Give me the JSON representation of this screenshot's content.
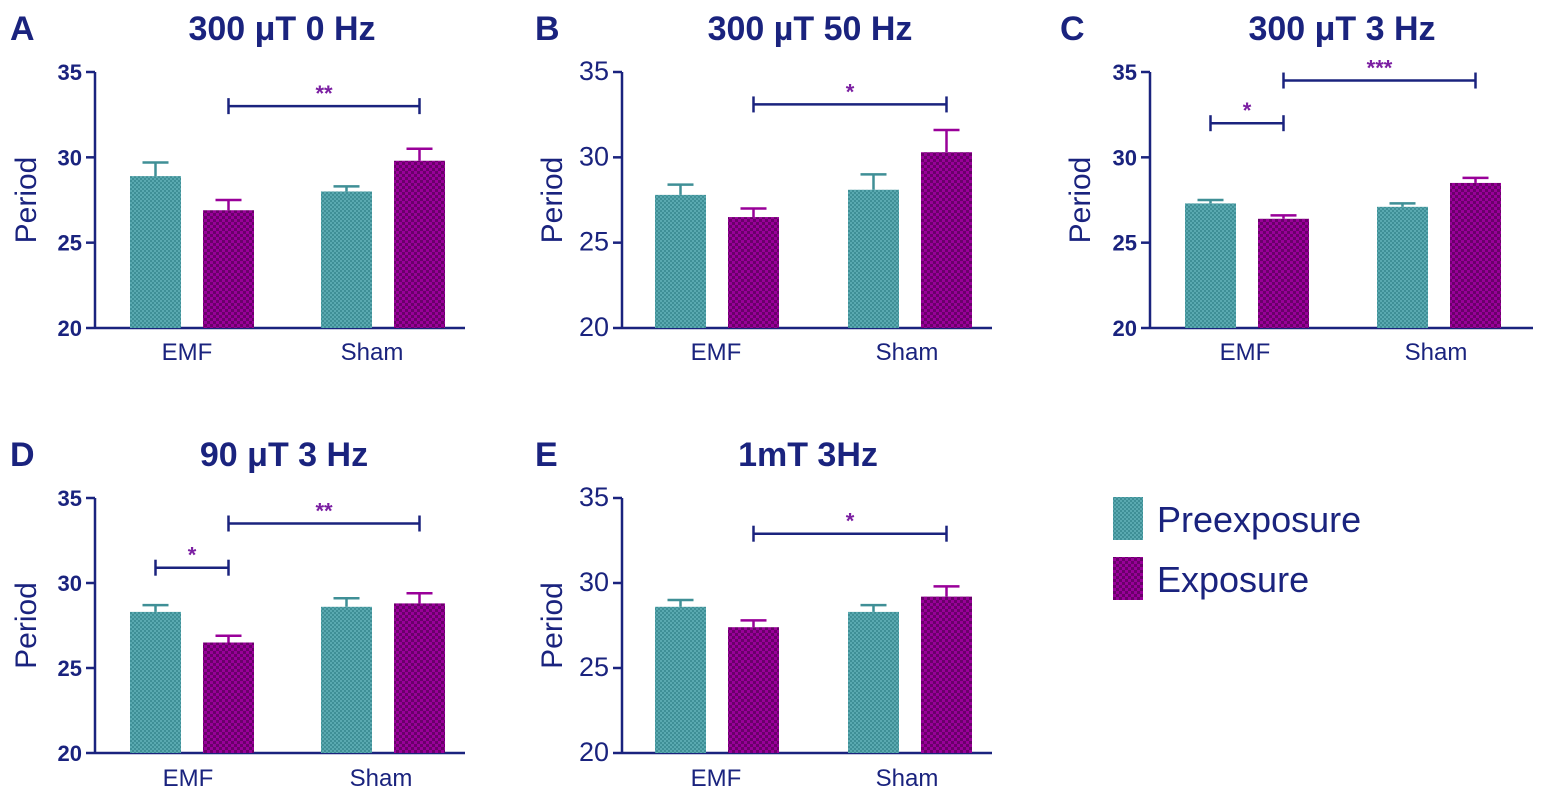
{
  "colors": {
    "axis": "#1a237e",
    "preexposure": "#3f8f96",
    "exposure": "#990099",
    "significance": "#7b1fa2"
  },
  "legend": {
    "items": [
      {
        "label": "Preexposure",
        "color": "#3f8f96"
      },
      {
        "label": "Exposure",
        "color": "#990099"
      }
    ]
  },
  "chart_data": [
    {
      "type": "bar",
      "letter": "A",
      "title": "300 μT 0 Hz",
      "ylabel": "Period",
      "ylim": [
        20,
        35
      ],
      "yticks": [
        "20",
        "25",
        "30",
        "35"
      ],
      "categories": [
        "EMF",
        "Sham"
      ],
      "series": [
        {
          "name": "Preexposure",
          "values": [
            28.9,
            28.0
          ],
          "errors": [
            0.8,
            0.3
          ]
        },
        {
          "name": "Exposure",
          "values": [
            26.9,
            29.8
          ],
          "errors": [
            0.6,
            0.7
          ]
        }
      ],
      "significance": [
        {
          "from": "EMF.Exposure",
          "to": "Sham.Exposure",
          "y": 33.0,
          "label": "**"
        }
      ]
    },
    {
      "type": "bar",
      "letter": "B",
      "title": "300 µT 50 Hz",
      "ylabel": "Period",
      "ylim": [
        20,
        35
      ],
      "yticks": [
        "20",
        "25",
        "30",
        "35"
      ],
      "categories": [
        "EMF",
        "Sham"
      ],
      "series": [
        {
          "name": "Preexposure",
          "values": [
            27.8,
            28.1
          ],
          "errors": [
            0.6,
            0.9
          ]
        },
        {
          "name": "Exposure",
          "values": [
            26.5,
            30.3
          ],
          "errors": [
            0.5,
            1.3
          ]
        }
      ],
      "significance": [
        {
          "from": "EMF.Exposure",
          "to": "Sham.Exposure",
          "y": 33.1,
          "label": "*"
        }
      ]
    },
    {
      "type": "bar",
      "letter": "C",
      "title": "300 μT 3 Hz",
      "ylabel": "Period",
      "ylim": [
        20,
        35
      ],
      "yticks": [
        "20",
        "25",
        "30",
        "35"
      ],
      "categories": [
        "EMF",
        "Sham"
      ],
      "series": [
        {
          "name": "Preexposure",
          "values": [
            27.3,
            27.1
          ],
          "errors": [
            0.2,
            0.2
          ]
        },
        {
          "name": "Exposure",
          "values": [
            26.4,
            28.5
          ],
          "errors": [
            0.2,
            0.3
          ]
        }
      ],
      "significance": [
        {
          "from": "EMF.Preexposure",
          "to": "EMF.Exposure",
          "y": 32.0,
          "label": "*"
        },
        {
          "from": "EMF.Exposure",
          "to": "Sham.Exposure",
          "y": 34.5,
          "label": "***"
        }
      ]
    },
    {
      "type": "bar",
      "letter": "D",
      "title": "90 μT 3 Hz",
      "ylabel": "Period",
      "ylim": [
        20,
        35
      ],
      "yticks": [
        "20",
        "25",
        "30",
        "35"
      ],
      "categories": [
        "EMF",
        "Sham"
      ],
      "series": [
        {
          "name": "Preexposure",
          "values": [
            28.3,
            28.6
          ],
          "errors": [
            0.4,
            0.5
          ]
        },
        {
          "name": "Exposure",
          "values": [
            26.5,
            28.8
          ],
          "errors": [
            0.4,
            0.6
          ]
        }
      ],
      "significance": [
        {
          "from": "EMF.Preexposure",
          "to": "EMF.Exposure",
          "y": 30.9,
          "label": "*"
        },
        {
          "from": "EMF.Exposure",
          "to": "Sham.Exposure",
          "y": 33.5,
          "label": "**"
        }
      ]
    },
    {
      "type": "bar",
      "letter": "E",
      "title": "1mT 3Hz",
      "ylabel": "Period",
      "ylim": [
        20,
        35
      ],
      "yticks": [
        "20",
        "25",
        "30",
        "35"
      ],
      "categories": [
        "EMF",
        "Sham"
      ],
      "series": [
        {
          "name": "Preexposure",
          "values": [
            28.6,
            28.3
          ],
          "errors": [
            0.4,
            0.4
          ]
        },
        {
          "name": "Exposure",
          "values": [
            27.4,
            29.2
          ],
          "errors": [
            0.4,
            0.6
          ]
        }
      ],
      "significance": [
        {
          "from": "EMF.Exposure",
          "to": "Sham.Exposure",
          "y": 32.9,
          "label": "*"
        }
      ]
    }
  ]
}
